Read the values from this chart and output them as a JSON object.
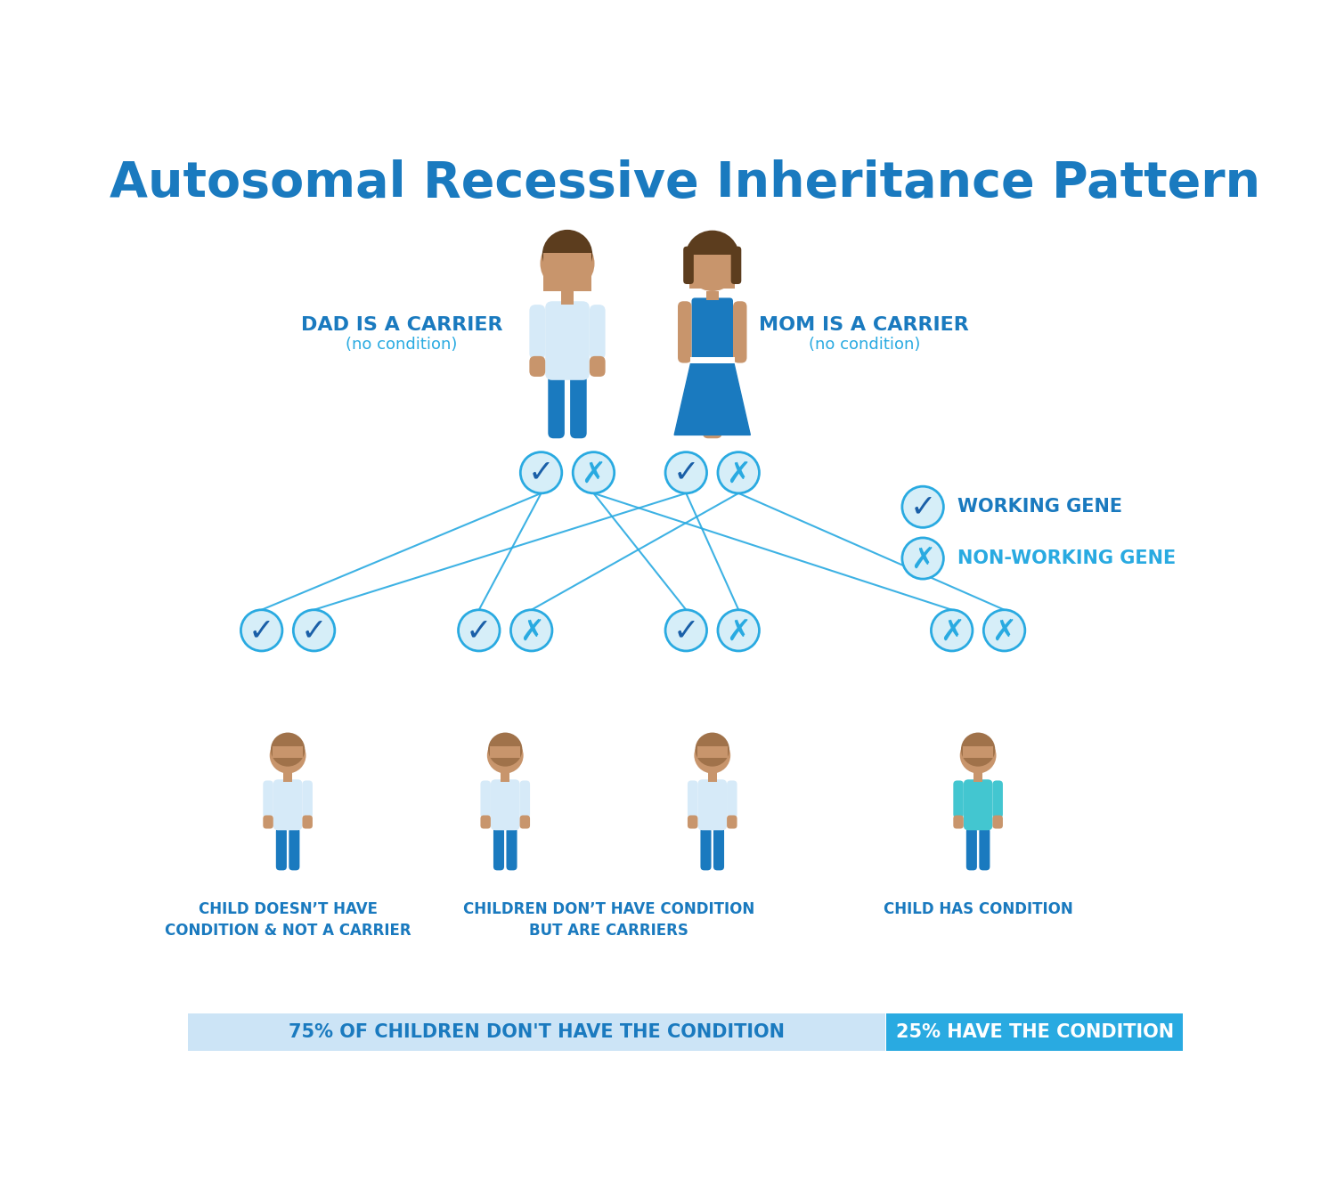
{
  "title": "Autosomal Recessive Inheritance Pattern",
  "title_color": "#1a7abf",
  "title_fontsize": 40,
  "bg_color": "#ffffff",
  "blue_dark": "#1a7abf",
  "blue_mid": "#29aae1",
  "blue_light": "#d6eaf8",
  "cyan_shirt": "#43c6d0",
  "skin": "#c8956c",
  "hair_dark": "#5c3d1e",
  "white": "#ffffff",
  "bar_left_color": "#cce4f6",
  "bar_right_color": "#29aae1",
  "bar_left_text": "75% OF CHILDREN DON'T HAVE THE CONDITION",
  "bar_right_text": "25% HAVE THE CONDITION",
  "dad_label": "DAD IS A CARRIER",
  "dad_sub": "(no condition)",
  "mom_label": "MOM IS A CARRIER",
  "mom_sub": "(no condition)",
  "legend_working": "WORKING GENE",
  "legend_nonworking": "NON-WORKING GENE",
  "child1_label": "CHILD DOESN’T HAVE\nCONDITION & NOT A CARRIER",
  "child2_label": "CHILDREN DON’T HAVE CONDITION\nBUT ARE CARRIERS",
  "child3_label": "CHILD HAS CONDITION",
  "line_color": "#29aae1",
  "check_color": "#1a5fa8",
  "x_color": "#29aae1",
  "circle_bg": "#d6eef8",
  "circle_border": "#29aae1"
}
